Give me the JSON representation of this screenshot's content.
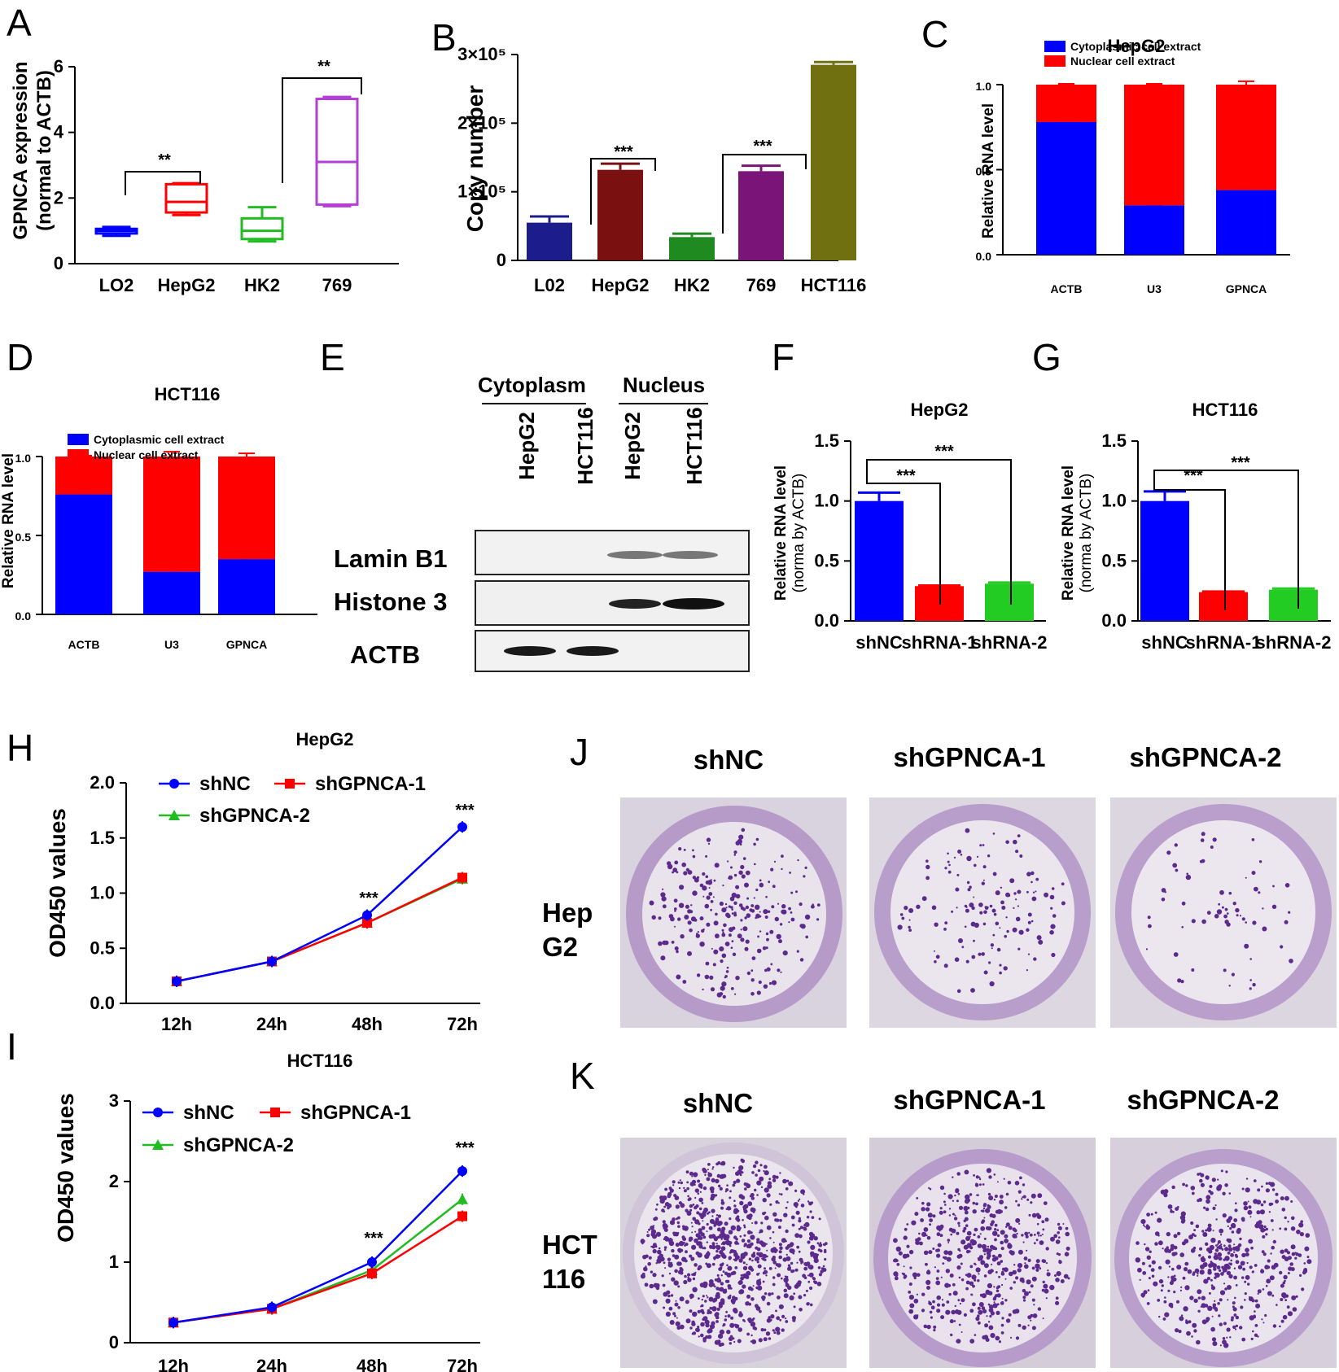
{
  "panels": {
    "A": {
      "letter": "A",
      "ylabel1": "GPNCA expression",
      "ylabel2": "(normal to ACTB)",
      "sig1": "**",
      "sig2": "**"
    },
    "B": {
      "letter": "B",
      "ylabel": "Copy number",
      "sig1": "***",
      "sig2": "***"
    },
    "C": {
      "letter": "C",
      "ylabel": "Relative RNA level"
    },
    "D": {
      "letter": "D",
      "ylabel": "Relative RNA level"
    },
    "E": {
      "letter": "E",
      "group_cyto": "Cytoplasm",
      "group_nuc": "Nucleus",
      "lanes": [
        "HepG2",
        "HCT116",
        "HepG2",
        "HCT116"
      ],
      "rows": [
        "Lamin B1",
        "Histone 3",
        "ACTB"
      ]
    },
    "F": {
      "letter": "F",
      "ylabel1": "Relative RNA level",
      "ylabel2": "(norma by ACTB)",
      "sig1": "***",
      "sig2": "***"
    },
    "G": {
      "letter": "G",
      "ylabel1": "Relative RNA level",
      "ylabel2": "(norma by ACTB)",
      "sig1": "***",
      "sig2": "***"
    },
    "H": {
      "letter": "H",
      "ylabel": "OD450 values",
      "sig1": "***",
      "sig2": "***"
    },
    "I": {
      "letter": "I",
      "ylabel": "OD450 values",
      "sig1": "***",
      "sig2": "***"
    },
    "J": {
      "letter": "J",
      "cols": [
        "shNC",
        "shGPNCA-1",
        "shGPNCA-2"
      ],
      "row1": "Hep",
      "row2": "G2"
    },
    "K": {
      "letter": "K",
      "cols": [
        "shNC",
        "shGPNCA-1",
        "shGPNCA-2"
      ],
      "row1": "HCT",
      "row2": "116"
    }
  },
  "colors": {
    "blue": "#0000ff",
    "red": "#ff0000",
    "green": "#22bb22",
    "purple": "#8a3fa6"
  },
  "chart_data": [
    {
      "id": "A",
      "type": "box",
      "categories": [
        "LO2",
        "HepG2",
        "HK2",
        "769"
      ],
      "boxes": [
        {
          "min": 0.85,
          "q1": 0.92,
          "median": 1.0,
          "q3": 1.06,
          "max": 1.12,
          "color": "#0000ff"
        },
        {
          "min": 1.48,
          "q1": 1.56,
          "median": 1.88,
          "q3": 2.42,
          "max": 2.45,
          "color": "#ff0000"
        },
        {
          "min": 0.68,
          "q1": 0.75,
          "median": 1.0,
          "q3": 1.38,
          "max": 1.72,
          "color": "#22bb22"
        },
        {
          "min": 1.75,
          "q1": 1.8,
          "median": 3.1,
          "q3": 5.02,
          "max": 5.08,
          "color": "#b43fd6"
        }
      ],
      "ylim": [
        0,
        6
      ],
      "yticks": [
        "0",
        "2",
        "4",
        "6"
      ],
      "ylabel": "GPNCA expression (normal to ACTB)"
    },
    {
      "id": "B",
      "type": "bar",
      "categories": [
        "L02",
        "HepG2",
        "HK2",
        "769",
        "HCT116"
      ],
      "values": [
        55000,
        132000,
        34000,
        130000,
        285000
      ],
      "errors": [
        9000,
        9000,
        5000,
        8000,
        4000
      ],
      "colors": [
        "#1c1c8c",
        "#7a1010",
        "#1f8a1f",
        "#7a1478",
        "#707010"
      ],
      "ylim": [
        0,
        300000
      ],
      "yticks": [
        "0",
        "1×10⁵",
        "2×10⁵",
        "3×10⁵"
      ],
      "ylabel": "Copy number"
    },
    {
      "id": "C",
      "type": "stacked-bar",
      "title": "HepG2",
      "categories": [
        "ACTB",
        "U3",
        "GPNCA"
      ],
      "series": [
        {
          "name": "Cytoplasmic cell extract",
          "values": [
            0.78,
            0.29,
            0.38
          ],
          "errors": [
            0.005,
            0.005,
            0.01
          ],
          "color": "#0000ff"
        },
        {
          "name": "Nuclear cell extract",
          "values": [
            0.22,
            0.71,
            0.62
          ],
          "errors": [
            0.005,
            0.005,
            0.02
          ],
          "color": "#ff0000"
        }
      ],
      "ylim": [
        0,
        1.0
      ],
      "yticks": [
        "0.0",
        "0.5",
        "1.0"
      ],
      "ylabel": "Relative RNA level"
    },
    {
      "id": "D",
      "type": "stacked-bar",
      "title": "HCT116",
      "categories": [
        "ACTB",
        "U3",
        "GPNCA"
      ],
      "series": [
        {
          "name": "Cytoplasmic cell extract",
          "values": [
            0.76,
            0.27,
            0.35
          ],
          "errors": [
            0.005,
            0.02,
            0.01
          ],
          "color": "#0000ff"
        },
        {
          "name": "Nuclear cell extract",
          "values": [
            0.24,
            0.73,
            0.65
          ],
          "errors": [
            0.005,
            0.03,
            0.02
          ],
          "color": "#ff0000"
        }
      ],
      "ylim": [
        0,
        1.0
      ],
      "yticks": [
        "0.0",
        "0.5",
        "1.0"
      ],
      "ylabel": "Relative RNA level"
    },
    {
      "id": "F",
      "type": "bar",
      "title": "HepG2",
      "categories": [
        "shNC",
        "shRNA-1",
        "shRNA-2"
      ],
      "values": [
        1.0,
        0.29,
        0.31
      ],
      "errors": [
        0.07,
        0.005,
        0.01
      ],
      "colors": [
        "#0000ff",
        "#ff0000",
        "#22cc22"
      ],
      "ylim": [
        0,
        1.5
      ],
      "yticks": [
        "0.0",
        "0.5",
        "1.0",
        "1.5"
      ],
      "ylabel": "Relative RNA level (norma by ACTB)"
    },
    {
      "id": "G",
      "type": "bar",
      "title": "HCT116",
      "categories": [
        "shNC",
        "shRNA-1",
        "shRNA-2"
      ],
      "values": [
        1.0,
        0.24,
        0.26
      ],
      "errors": [
        0.08,
        0.005,
        0.01
      ],
      "colors": [
        "#0000ff",
        "#ff0000",
        "#22cc22"
      ],
      "ylim": [
        0,
        1.5
      ],
      "yticks": [
        "0.0",
        "0.5",
        "1.0",
        "1.5"
      ],
      "ylabel": "Relative RNA level (norma by ACTB)"
    },
    {
      "id": "H",
      "type": "line",
      "title": "HepG2",
      "x": [
        "12h",
        "24h",
        "48h",
        "72h"
      ],
      "series": [
        {
          "name": "shNC",
          "values": [
            0.2,
            0.38,
            0.8,
            1.6
          ],
          "color": "#0000ff",
          "marker": "circle"
        },
        {
          "name": "shGPNCA-1",
          "values": [
            0.2,
            0.38,
            0.73,
            1.14
          ],
          "color": "#ff0000",
          "marker": "square"
        },
        {
          "name": "shGPNCA-2",
          "values": [
            0.2,
            0.38,
            0.73,
            1.13
          ],
          "color": "#22bb22",
          "marker": "triangle"
        }
      ],
      "ylim": [
        0,
        2.0
      ],
      "yticks": [
        "0.0",
        "0.5",
        "1.0",
        "1.5",
        "2.0"
      ],
      "ylabel": "OD450 values"
    },
    {
      "id": "I",
      "type": "line",
      "title": "HCT116",
      "x": [
        "12h",
        "24h",
        "48h",
        "72h"
      ],
      "series": [
        {
          "name": "shNC",
          "values": [
            0.25,
            0.44,
            1.0,
            2.13
          ],
          "color": "#0000ff",
          "marker": "circle"
        },
        {
          "name": "shGPNCA-1",
          "values": [
            0.25,
            0.42,
            0.86,
            1.57
          ],
          "color": "#ff0000",
          "marker": "square"
        },
        {
          "name": "shGPNCA-2",
          "values": [
            0.25,
            0.42,
            0.9,
            1.78
          ],
          "color": "#22bb22",
          "marker": "triangle"
        }
      ],
      "ylim": [
        0,
        3
      ],
      "yticks": [
        "0",
        "1",
        "2",
        "3"
      ],
      "ylabel": "OD450 values"
    }
  ]
}
